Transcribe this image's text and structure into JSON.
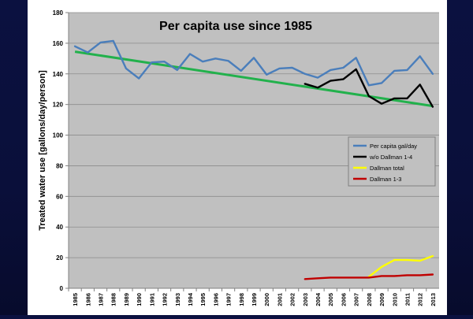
{
  "chart_data": {
    "type": "line",
    "title": "Per capita use since 1985",
    "ylabel": "Treated water use [gallons/day/person]",
    "xlabel": "",
    "ylim": [
      0,
      180
    ],
    "yticks": [
      0,
      20,
      40,
      60,
      80,
      100,
      120,
      140,
      160,
      180
    ],
    "categories": [
      "1985",
      "1986",
      "1987",
      "1988",
      "1989",
      "1990",
      "1991",
      "1992",
      "1993",
      "1994",
      "1995",
      "1996",
      "1997",
      "1998",
      "1999",
      "2000",
      "2001",
      "2002",
      "2003",
      "2004",
      "2005",
      "2006",
      "2007",
      "2008",
      "2009",
      "2010",
      "2011",
      "2012",
      "2013"
    ],
    "grid": true,
    "legend_placement": "right",
    "series": [
      {
        "name": "Per capita gal/day",
        "color": "#4a7ebb",
        "values": [
          158,
          154,
          160.5,
          161.5,
          143.5,
          137,
          147.5,
          148,
          142.5,
          153,
          148,
          150,
          148.5,
          142,
          150.5,
          139.5,
          143.5,
          144,
          140,
          137.5,
          142.5,
          144,
          150.5,
          132.5,
          134,
          142,
          142.5,
          151.5,
          140
        ]
      },
      {
        "name": "w/o Dallman 1-4",
        "color": "#000000",
        "values": [
          null,
          null,
          null,
          null,
          null,
          null,
          null,
          null,
          null,
          null,
          null,
          null,
          null,
          null,
          null,
          null,
          null,
          null,
          133.5,
          131,
          135.5,
          136.5,
          143,
          125.5,
          120.5,
          124,
          124,
          133,
          118.5
        ]
      },
      {
        "name": "Dallman total",
        "color": "#ffff00",
        "values": [
          null,
          null,
          null,
          null,
          null,
          null,
          null,
          null,
          null,
          null,
          null,
          null,
          null,
          null,
          null,
          null,
          null,
          null,
          null,
          null,
          null,
          null,
          null,
          7.5,
          14,
          18.5,
          18.5,
          18,
          21
        ]
      },
      {
        "name": "Dallman 1-3",
        "color": "#c00000",
        "values": [
          null,
          null,
          null,
          null,
          null,
          null,
          null,
          null,
          null,
          null,
          null,
          null,
          null,
          null,
          null,
          null,
          null,
          null,
          6,
          6.5,
          7,
          7,
          7,
          7,
          8,
          8,
          8.5,
          8.5,
          9
        ]
      }
    ],
    "trendline": {
      "color": "#22b14c",
      "start": {
        "x": "1985",
        "y": 154.5
      },
      "end": {
        "x": "2013",
        "y": 119
      }
    }
  }
}
